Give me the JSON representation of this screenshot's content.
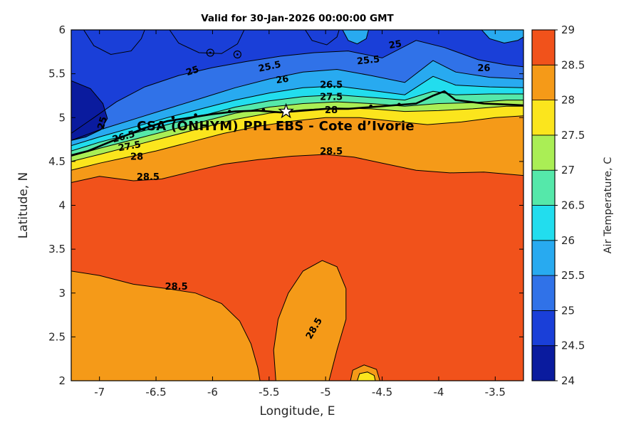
{
  "chart_data": {
    "type": "filled-contour",
    "title": "Valid for 30-Jan-2026 00:00:00 GMT",
    "xlabel": "Longitude, E",
    "ylabel": "Latitude, N",
    "x_range": [
      -7.25,
      -3.25
    ],
    "y_range": [
      2,
      6
    ],
    "x_ticks": [
      -7,
      -6.5,
      -6,
      -5.5,
      -5,
      -4.5,
      -4,
      -3.5
    ],
    "y_ticks": [
      2,
      2.5,
      3,
      3.5,
      4,
      4.5,
      5,
      5.5,
      6
    ],
    "value_range": [
      24,
      29
    ],
    "level_step": 0.5,
    "colorbar": {
      "label": "Air Temperature, C",
      "ticks": [
        24,
        24.5,
        25,
        25.5,
        26,
        26.5,
        27,
        27.5,
        28,
        28.5,
        29
      ],
      "cells": [
        {
          "range": [
            24,
            24.5
          ],
          "color": "#0A1B9E"
        },
        {
          "range": [
            24.5,
            25
          ],
          "color": "#1A3FD8"
        },
        {
          "range": [
            25,
            25.5
          ],
          "color": "#3072E8"
        },
        {
          "range": [
            25.5,
            26
          ],
          "color": "#28AAF0"
        },
        {
          "range": [
            26,
            26.5
          ],
          "color": "#22DDEE"
        },
        {
          "range": [
            26.5,
            27
          ],
          "color": "#55E8AA"
        },
        {
          "range": [
            27,
            27.5
          ],
          "color": "#AAEE55"
        },
        {
          "range": [
            27.5,
            28
          ],
          "color": "#FBE51D"
        },
        {
          "range": [
            28,
            28.5
          ],
          "color": "#F59A18"
        },
        {
          "range": [
            28.5,
            29
          ],
          "color": "#F1521B"
        }
      ]
    },
    "base_band": {
      "range": [
        28.5,
        29
      ],
      "color": "#F1521B"
    },
    "north_bands": [
      {
        "level": 28.5,
        "color": "#F59A18",
        "boundary": [
          [
            -7.25,
            4.26
          ],
          [
            -7.0,
            4.33
          ],
          [
            -6.7,
            4.28
          ],
          [
            -6.45,
            4.3
          ],
          [
            -6.2,
            4.38
          ],
          [
            -5.9,
            4.47
          ],
          [
            -5.6,
            4.52
          ],
          [
            -5.3,
            4.56
          ],
          [
            -5.0,
            4.58
          ],
          [
            -4.75,
            4.55
          ],
          [
            -4.5,
            4.48
          ],
          [
            -4.2,
            4.4
          ],
          [
            -3.9,
            4.37
          ],
          [
            -3.6,
            4.38
          ],
          [
            -3.25,
            4.34
          ]
        ]
      },
      {
        "level": 28,
        "color": "#FBE51D",
        "boundary": [
          [
            -7.25,
            4.4
          ],
          [
            -7.0,
            4.48
          ],
          [
            -6.75,
            4.55
          ],
          [
            -6.5,
            4.62
          ],
          [
            -6.2,
            4.72
          ],
          [
            -5.9,
            4.82
          ],
          [
            -5.6,
            4.9
          ],
          [
            -5.3,
            4.96
          ],
          [
            -5.0,
            5.0
          ],
          [
            -4.7,
            5.0
          ],
          [
            -4.4,
            4.96
          ],
          [
            -4.1,
            4.92
          ],
          [
            -3.8,
            4.95
          ],
          [
            -3.5,
            5.0
          ],
          [
            -3.25,
            5.02
          ]
        ]
      },
      {
        "level": 27.5,
        "color": "#AAEE55",
        "boundary": [
          [
            -7.25,
            4.5
          ],
          [
            -7.0,
            4.58
          ],
          [
            -6.7,
            4.68
          ],
          [
            -6.4,
            4.78
          ],
          [
            -6.1,
            4.88
          ],
          [
            -5.8,
            4.98
          ],
          [
            -5.5,
            5.05
          ],
          [
            -5.2,
            5.09
          ],
          [
            -4.9,
            5.11
          ],
          [
            -4.6,
            5.1
          ],
          [
            -4.3,
            5.07
          ],
          [
            -4.0,
            5.08
          ],
          [
            -3.7,
            5.1
          ],
          [
            -3.4,
            5.13
          ],
          [
            -3.25,
            5.13
          ]
        ]
      },
      {
        "level": 27,
        "color": "#55E8AA",
        "boundary": [
          [
            -7.25,
            4.56
          ],
          [
            -7.0,
            4.65
          ],
          [
            -6.7,
            4.75
          ],
          [
            -6.4,
            4.85
          ],
          [
            -6.1,
            4.95
          ],
          [
            -5.8,
            5.05
          ],
          [
            -5.5,
            5.12
          ],
          [
            -5.2,
            5.16
          ],
          [
            -4.9,
            5.18
          ],
          [
            -4.6,
            5.16
          ],
          [
            -4.3,
            5.13
          ],
          [
            -4.0,
            5.16
          ],
          [
            -3.7,
            5.17
          ],
          [
            -3.4,
            5.2
          ],
          [
            -3.25,
            5.2
          ]
        ]
      },
      {
        "level": 26.5,
        "color": "#22DDEE",
        "boundary": [
          [
            -7.25,
            4.62
          ],
          [
            -7.0,
            4.72
          ],
          [
            -6.7,
            4.82
          ],
          [
            -6.4,
            4.92
          ],
          [
            -6.1,
            5.02
          ],
          [
            -5.8,
            5.12
          ],
          [
            -5.5,
            5.19
          ],
          [
            -5.2,
            5.24
          ],
          [
            -4.9,
            5.26
          ],
          [
            -4.6,
            5.23
          ],
          [
            -4.3,
            5.2
          ],
          [
            -4.05,
            5.3
          ],
          [
            -3.85,
            5.26
          ],
          [
            -3.55,
            5.27
          ],
          [
            -3.25,
            5.27
          ]
        ]
      },
      {
        "level": 26,
        "color": "#28AAF0",
        "boundary": [
          [
            -7.25,
            4.68
          ],
          [
            -7.0,
            4.78
          ],
          [
            -6.7,
            4.89
          ],
          [
            -6.4,
            5.0
          ],
          [
            -6.1,
            5.1
          ],
          [
            -5.8,
            5.2
          ],
          [
            -5.5,
            5.28
          ],
          [
            -5.2,
            5.34
          ],
          [
            -4.9,
            5.36
          ],
          [
            -4.6,
            5.31
          ],
          [
            -4.3,
            5.26
          ],
          [
            -4.05,
            5.47
          ],
          [
            -3.85,
            5.37
          ],
          [
            -3.55,
            5.35
          ],
          [
            -3.25,
            5.34
          ]
        ]
      },
      {
        "level": 25.5,
        "color": "#3072E8",
        "boundary": [
          [
            -7.25,
            4.74
          ],
          [
            -7.0,
            4.86
          ],
          [
            -6.7,
            4.98
          ],
          [
            -6.4,
            5.1
          ],
          [
            -6.1,
            5.22
          ],
          [
            -5.8,
            5.34
          ],
          [
            -5.5,
            5.44
          ],
          [
            -5.2,
            5.52
          ],
          [
            -4.9,
            5.55
          ],
          [
            -4.6,
            5.48
          ],
          [
            -4.3,
            5.4
          ],
          [
            -4.05,
            5.65
          ],
          [
            -3.85,
            5.52
          ],
          [
            -3.55,
            5.46
          ],
          [
            -3.25,
            5.44
          ]
        ]
      },
      {
        "level": 25,
        "color": "#1A3FD8",
        "boundary": [
          [
            -7.25,
            4.82
          ],
          [
            -7.05,
            5.0
          ],
          [
            -6.85,
            5.18
          ],
          [
            -6.6,
            5.35
          ],
          [
            -6.3,
            5.48
          ],
          [
            -6.0,
            5.57
          ],
          [
            -5.7,
            5.64
          ],
          [
            -5.4,
            5.7
          ],
          [
            -5.1,
            5.74
          ],
          [
            -4.8,
            5.76
          ],
          [
            -4.5,
            5.68
          ],
          [
            -4.2,
            5.88
          ],
          [
            -3.95,
            5.8
          ],
          [
            -3.65,
            5.66
          ],
          [
            -3.4,
            5.6
          ],
          [
            -3.25,
            5.58
          ]
        ]
      }
    ],
    "south_regions": [
      {
        "level": 28.5,
        "color": "#F59A18",
        "polygon": [
          [
            -7.25,
            3.25
          ],
          [
            -7.0,
            3.2
          ],
          [
            -6.7,
            3.1
          ],
          [
            -6.4,
            3.05
          ],
          [
            -6.15,
            3.0
          ],
          [
            -5.92,
            2.88
          ],
          [
            -5.76,
            2.68
          ],
          [
            -5.66,
            2.42
          ],
          [
            -5.6,
            2.15
          ],
          [
            -5.58,
            2.0
          ],
          [
            -7.25,
            2.0
          ]
        ]
      },
      {
        "level": 28.5,
        "color": "#F59A18",
        "polygon": [
          [
            -5.44,
            2.0
          ],
          [
            -5.46,
            2.35
          ],
          [
            -5.42,
            2.7
          ],
          [
            -5.33,
            3.0
          ],
          [
            -5.2,
            3.25
          ],
          [
            -5.03,
            3.37
          ],
          [
            -4.9,
            3.3
          ],
          [
            -4.82,
            3.05
          ],
          [
            -4.82,
            2.7
          ],
          [
            -4.9,
            2.35
          ],
          [
            -4.97,
            2.0
          ]
        ]
      },
      {
        "level": 28.5,
        "color": "#F59A18",
        "polygon": [
          [
            -4.78,
            2.0
          ],
          [
            -4.76,
            2.12
          ],
          [
            -4.66,
            2.18
          ],
          [
            -4.55,
            2.13
          ],
          [
            -4.52,
            2.0
          ]
        ]
      },
      {
        "level": 28,
        "color": "#FBE51D",
        "polygon": [
          [
            -4.72,
            2.0
          ],
          [
            -4.7,
            2.08
          ],
          [
            -4.63,
            2.1
          ],
          [
            -4.57,
            2.06
          ],
          [
            -4.56,
            2.0
          ]
        ]
      }
    ],
    "cold_patches": [
      {
        "level": 24.5,
        "color": "#0A1B9E",
        "polygon": [
          [
            -7.25,
            5.42
          ],
          [
            -7.08,
            5.33
          ],
          [
            -6.97,
            5.16
          ],
          [
            -6.93,
            4.99
          ],
          [
            -6.99,
            4.86
          ],
          [
            -7.12,
            4.78
          ],
          [
            -7.25,
            4.74
          ]
        ]
      },
      {
        "level": 24.5,
        "color": "#1A3FD8",
        "polygon": [
          [
            -7.14,
            6.0
          ],
          [
            -7.05,
            5.82
          ],
          [
            -6.9,
            5.72
          ],
          [
            -6.72,
            5.76
          ],
          [
            -6.63,
            5.9
          ],
          [
            -6.6,
            6.0
          ]
        ]
      },
      {
        "level": 24.5,
        "color": "#1A3FD8",
        "polygon": [
          [
            -6.38,
            6.0
          ],
          [
            -6.3,
            5.85
          ],
          [
            -6.12,
            5.74
          ],
          [
            -5.92,
            5.73
          ],
          [
            -5.78,
            5.84
          ],
          [
            -5.72,
            6.0
          ]
        ]
      },
      {
        "level": 24.5,
        "color": "#1A3FD8",
        "polygon": [
          [
            -5.18,
            6.0
          ],
          [
            -5.12,
            5.88
          ],
          [
            -4.99,
            5.83
          ],
          [
            -4.9,
            5.92
          ],
          [
            -4.88,
            6.0
          ]
        ]
      }
    ],
    "light_patches": [
      {
        "level": 25.5,
        "color": "#28AAF0",
        "polygon": [
          [
            -3.62,
            6.0
          ],
          [
            -3.55,
            5.9
          ],
          [
            -3.42,
            5.85
          ],
          [
            -3.3,
            5.88
          ],
          [
            -3.25,
            5.92
          ],
          [
            -3.25,
            6.0
          ]
        ]
      },
      {
        "level": 25.5,
        "color": "#28AAF0",
        "polygon": [
          [
            -4.85,
            6.0
          ],
          [
            -4.8,
            5.88
          ],
          [
            -4.72,
            5.84
          ],
          [
            -4.64,
            5.9
          ],
          [
            -4.62,
            6.0
          ]
        ]
      }
    ],
    "coastline": [
      [
        -7.25,
        4.57
      ],
      [
        -7.1,
        4.62
      ],
      [
        -6.95,
        4.7
      ],
      [
        -6.8,
        4.78
      ],
      [
        -6.6,
        4.88
      ],
      [
        -6.4,
        4.96
      ],
      [
        -6.2,
        5.0
      ],
      [
        -6.0,
        5.04
      ],
      [
        -5.8,
        5.07
      ],
      [
        -5.6,
        5.08
      ],
      [
        -5.4,
        5.06
      ],
      [
        -5.2,
        5.08
      ],
      [
        -5.0,
        5.1
      ],
      [
        -4.8,
        5.1
      ],
      [
        -4.6,
        5.12
      ],
      [
        -4.4,
        5.14
      ],
      [
        -4.2,
        5.16
      ],
      [
        -4.05,
        5.25
      ],
      [
        -3.95,
        5.3
      ],
      [
        -3.85,
        5.2
      ],
      [
        -3.6,
        5.16
      ],
      [
        -3.4,
        5.15
      ],
      [
        -3.25,
        5.14
      ]
    ],
    "coast_dots": [
      [
        -6.35,
        5.0
      ],
      [
        -6.15,
        5.03
      ],
      [
        -5.85,
        5.07
      ],
      [
        -5.55,
        5.09
      ],
      [
        -4.6,
        5.13
      ],
      [
        -4.35,
        5.15
      ]
    ],
    "circle_markers": [
      {
        "lon": -6.02,
        "lat": 5.74
      },
      {
        "lon": -5.78,
        "lat": 5.72
      }
    ],
    "star_marker": {
      "lon": -5.35,
      "lat": 5.07
    },
    "annotation": {
      "text": "CSA (ONHYM) PPL EBS  - Cote d’Ivorie",
      "lon": -6.67,
      "lat": 4.855
    },
    "contour_labels": [
      {
        "text": "25",
        "lon": -6.95,
        "lat": 4.93,
        "rot": -75
      },
      {
        "text": "25",
        "lon": -6.17,
        "lat": 5.5,
        "rot": -18
      },
      {
        "text": "25.5",
        "lon": -5.49,
        "lat": 5.55,
        "rot": -12
      },
      {
        "text": "26",
        "lon": -5.38,
        "lat": 5.4,
        "rot": -8
      },
      {
        "text": "26.5",
        "lon": -4.95,
        "lat": 5.34,
        "rot": 0
      },
      {
        "text": "27.5",
        "lon": -4.95,
        "lat": 5.2,
        "rot": 0
      },
      {
        "text": "28",
        "lon": -4.95,
        "lat": 5.05,
        "rot": 0
      },
      {
        "text": "25.5",
        "lon": -4.62,
        "lat": 5.62,
        "rot": -6
      },
      {
        "text": "25",
        "lon": -4.38,
        "lat": 5.8,
        "rot": -10
      },
      {
        "text": "26",
        "lon": -3.6,
        "lat": 5.53,
        "rot": 0
      },
      {
        "text": "28",
        "lon": -6.67,
        "lat": 4.52,
        "rot": 0
      },
      {
        "text": "27.5",
        "lon": -6.73,
        "lat": 4.64,
        "rot": -10
      },
      {
        "text": "26.5",
        "lon": -6.78,
        "lat": 4.75,
        "rot": -15
      },
      {
        "text": "28.5",
        "lon": -6.57,
        "lat": 4.29,
        "rot": 0
      },
      {
        "text": "28.5",
        "lon": -4.95,
        "lat": 4.58,
        "rot": 0
      },
      {
        "text": "28.5",
        "lon": -6.32,
        "lat": 3.04,
        "rot": 0
      },
      {
        "text": "28.5",
        "lon": -5.08,
        "lat": 2.58,
        "rot": -60
      }
    ]
  }
}
